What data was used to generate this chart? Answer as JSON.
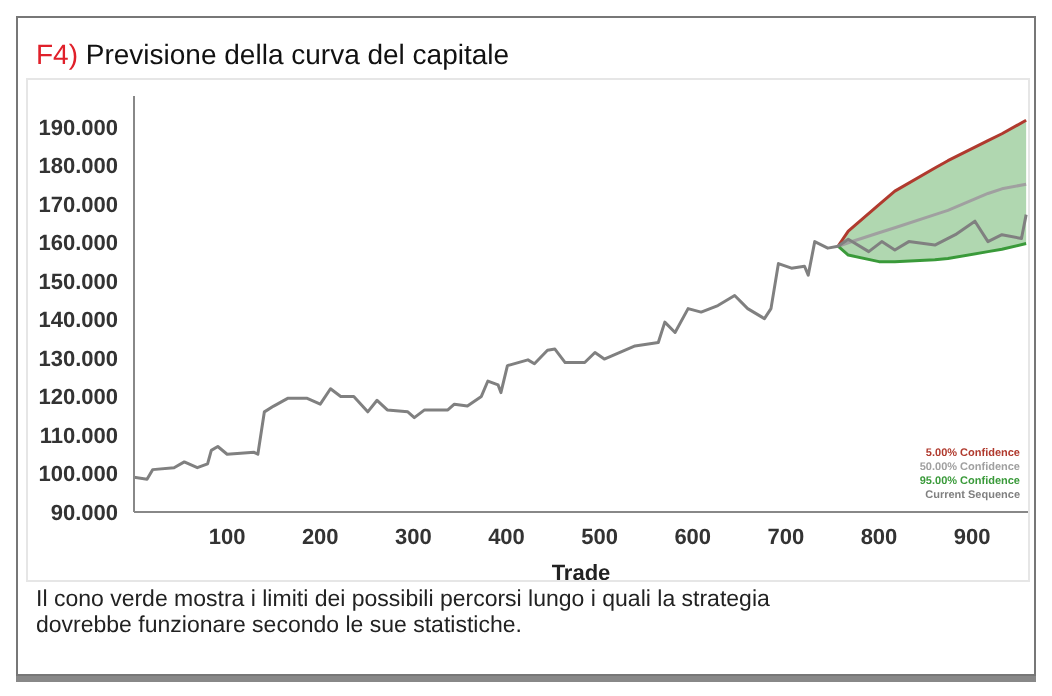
{
  "chart_data": {
    "type": "line",
    "title": "F4) Previsione della curva del capitale",
    "xlabel": "Trade",
    "annotations": [
      "Il cono verde mostra i limiti dei possibili percorsi lungo i quali la strategia dovrebbe funzionare secondo le sue statistiche."
    ],
    "xlim": [
      0,
      960
    ],
    "xticks": [
      100,
      200,
      300,
      400,
      500,
      600,
      700,
      800,
      900
    ],
    "ylim": [
      90,
      198
    ],
    "yticks": [
      {
        "value": 90,
        "label": "90.000"
      },
      {
        "value": 100,
        "label": "100.000"
      },
      {
        "value": 110,
        "label": "110.000"
      },
      {
        "value": 120,
        "label": "120.000"
      },
      {
        "value": 130,
        "label": "130.000"
      },
      {
        "value": 140,
        "label": "140.000"
      },
      {
        "value": 150,
        "label": "150.000"
      },
      {
        "value": 160,
        "label": "160.000"
      },
      {
        "value": 170,
        "label": "170.000"
      },
      {
        "value": 180,
        "label": "180.000"
      },
      {
        "value": 190,
        "label": "190.000"
      }
    ],
    "legend": "bottom right",
    "marker": "none",
    "series": [
      {
        "name": "5.00% Confidence",
        "color": "#b03a2e",
        "x": [
          756,
          767,
          800,
          817,
          860,
          874,
          917,
          932,
          958
        ],
        "values": [
          159,
          162.9,
          169.8,
          173.3,
          179.3,
          181.2,
          186.4,
          188.2,
          191.7
        ]
      },
      {
        "name": "50.00% Confidence",
        "color": "#a0a0a0",
        "x": [
          756,
          767,
          800,
          817,
          860,
          874,
          917,
          932,
          958
        ],
        "values": [
          159,
          159.9,
          162.5,
          163.8,
          167.2,
          168.3,
          172.7,
          173.9,
          175.1
        ],
        "lower": [
          159,
          156.7,
          155,
          155,
          155.5,
          155.8,
          157.6,
          158.2,
          159.7
        ],
        "upper": [
          159,
          162.9,
          169.8,
          173.3,
          179.3,
          181.2,
          186.4,
          188.2,
          191.7
        ]
      },
      {
        "name": "95.00% Confidence",
        "color": "#3a9a3a",
        "x": [
          756,
          767,
          800,
          817,
          860,
          874,
          917,
          932,
          958
        ],
        "values": [
          159,
          156.7,
          155,
          155,
          155.5,
          155.8,
          157.6,
          158.2,
          159.7
        ]
      },
      {
        "name": "Current Sequence",
        "color": "#808080",
        "x": [
          0,
          14,
          20,
          43,
          54,
          68,
          79,
          83,
          90,
          100,
          129,
          133,
          140,
          150,
          165,
          186,
          200,
          211,
          222,
          236,
          251,
          261,
          272,
          294,
          301,
          312,
          337,
          344,
          358,
          373,
          380,
          391,
          394,
          401,
          423,
          430,
          444,
          452,
          463,
          484,
          495,
          505,
          538,
          563,
          570,
          581,
          595,
          609,
          627,
          645,
          659,
          677,
          684,
          692,
          706,
          720,
          724,
          731,
          745,
          756,
          767,
          789,
          803,
          817,
          832,
          860,
          882,
          903,
          917,
          932,
          953,
          958
        ],
        "values": [
          99,
          98.5,
          101,
          101.5,
          103,
          101.5,
          102.5,
          106,
          107,
          105,
          105.5,
          105,
          116,
          117.5,
          119.5,
          119.5,
          118,
          122,
          120,
          120,
          116,
          119,
          116.5,
          116,
          114.5,
          116.5,
          116.5,
          118,
          117.5,
          120,
          124,
          123,
          121,
          128,
          129.5,
          128.5,
          132,
          132.3,
          128.8,
          128.8,
          131.4,
          129.7,
          133.1,
          134,
          139.3,
          136.6,
          142.8,
          141.9,
          143.6,
          146.2,
          142.8,
          140.2,
          142.8,
          154.5,
          153.3,
          153.8,
          151.5,
          160.2,
          158.5,
          159,
          160.8,
          157.6,
          160.2,
          158,
          160.2,
          159.3,
          162,
          165.5,
          160.2,
          162,
          161,
          167.2
        ]
      }
    ]
  }
}
